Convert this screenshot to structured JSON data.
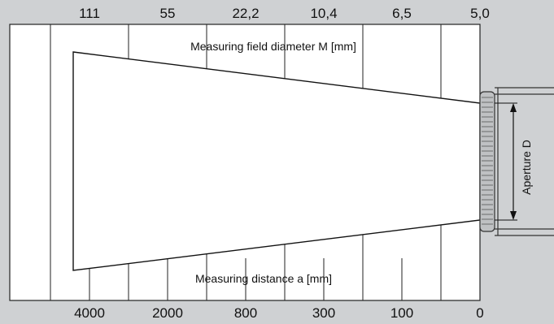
{
  "diagram": {
    "top_scale": {
      "caption": "Measuring field diameter M [mm]",
      "labels": [
        "111",
        "55",
        "22,2",
        "10,4",
        "6,5",
        "5,0"
      ]
    },
    "bottom_scale": {
      "caption": "Measuring distance a [mm]",
      "labels": [
        "4000",
        "2000",
        "800",
        "300",
        "100",
        "0"
      ]
    },
    "aperture_label": "Aperture D"
  }
}
